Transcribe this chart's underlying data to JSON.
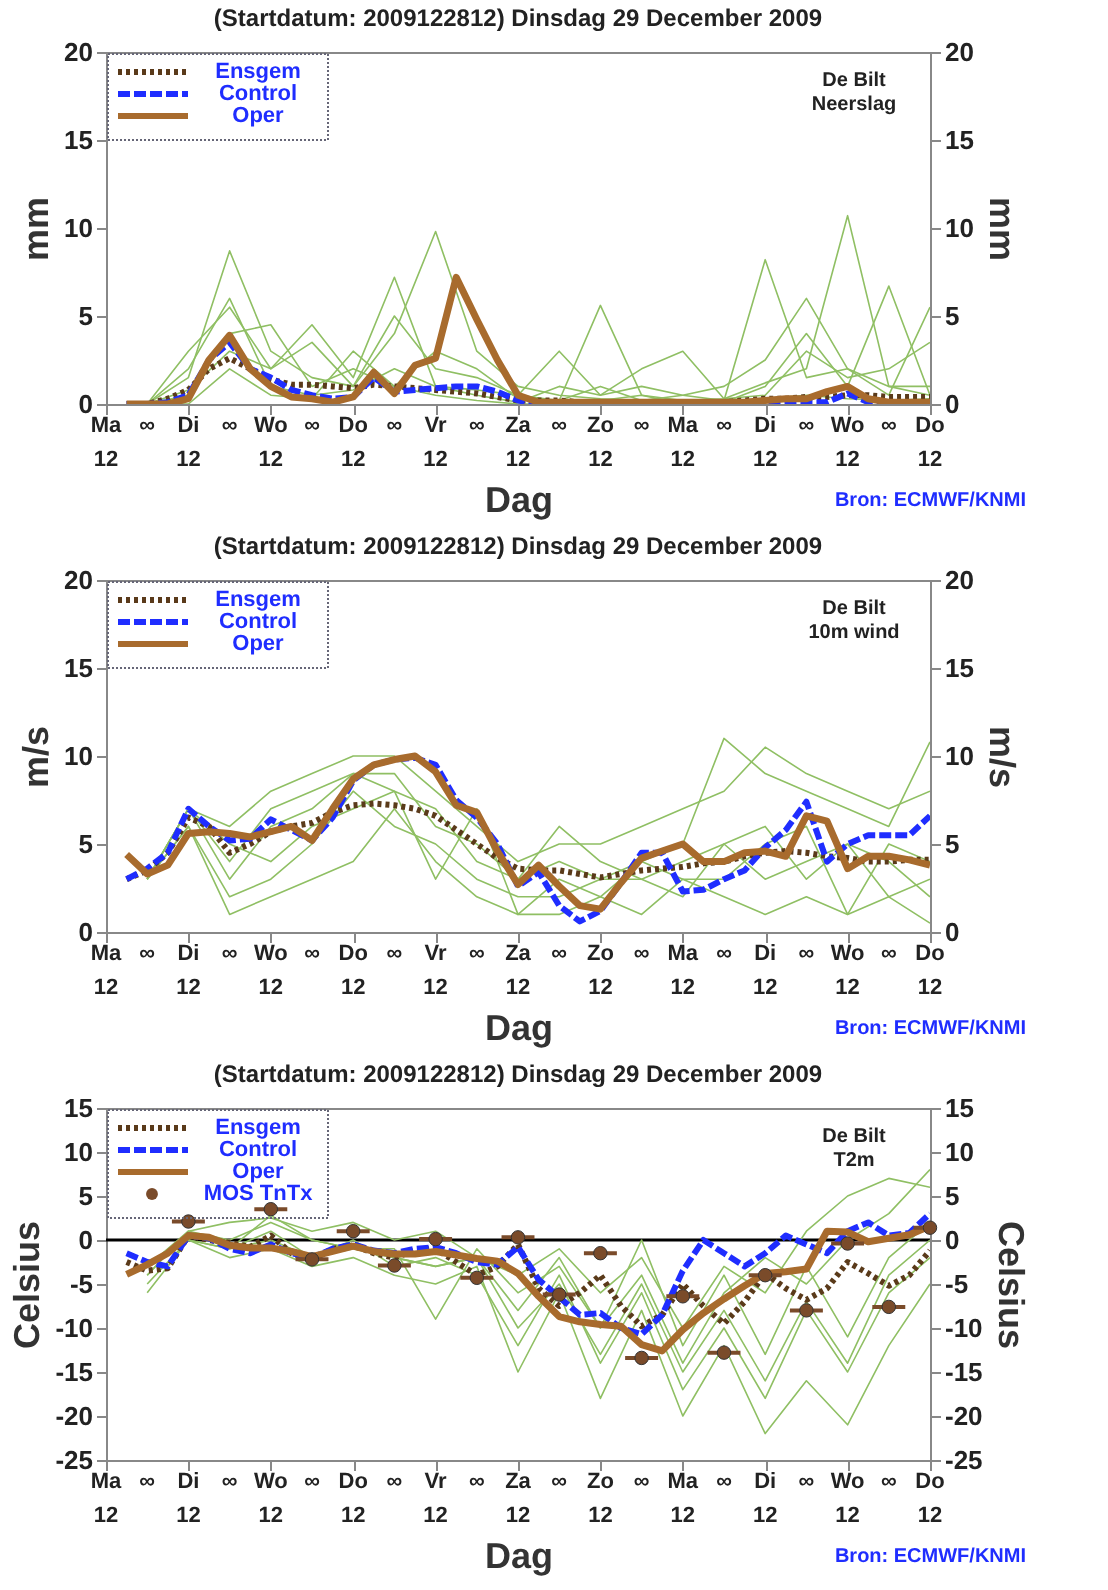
{
  "chart_data": [
    {
      "type": "line",
      "title": "(Startdatum: 2009122812)   Dinsdag   29 December  2009",
      "xlabel": "Dag",
      "ylabel": "mm",
      "y2label": "mm",
      "grid": false,
      "legend": "top left",
      "annotations": [
        "De Bilt",
        "Neerslag",
        "Bron: ECMWF/KNMI"
      ],
      "x": [
        "2009-12-28T18:00",
        "2009-12-29T00:00",
        "2009-12-29T06:00",
        "2009-12-29T12:00",
        "2009-12-29T18:00",
        "2009-12-30T00:00",
        "2009-12-30T06:00",
        "2009-12-30T12:00",
        "2009-12-30T18:00",
        "2009-12-31T00:00",
        "2009-12-31T06:00",
        "2009-12-31T12:00",
        "2009-12-31T18:00",
        "2010-01-01T00:00",
        "2010-01-01T06:00",
        "2010-01-01T12:00",
        "2010-01-01T18:00",
        "2010-01-02T00:00",
        "2010-01-02T06:00",
        "2010-01-02T12:00",
        "2010-01-02T18:00",
        "2010-01-03T00:00",
        "2010-01-03T06:00",
        "2010-01-03T12:00",
        "2010-01-03T18:00",
        "2010-01-04T00:00",
        "2010-01-04T06:00",
        "2010-01-04T12:00",
        "2010-01-04T18:00",
        "2010-01-05T00:00",
        "2010-01-05T06:00",
        "2010-01-05T12:00",
        "2010-01-05T18:00",
        "2010-01-06T00:00",
        "2010-01-06T06:00",
        "2010-01-06T12:00",
        "2010-01-06T18:00",
        "2010-01-07T00:00",
        "2010-01-07T06:00",
        "2010-01-07T12:00"
      ],
      "xlim": [
        "2009-12-28T12:00",
        "2010-01-07T12:00"
      ],
      "xticks": [
        {
          "value": "2009-12-28T12:00",
          "label": "Ma\n12"
        },
        {
          "value": "2009-12-29T00:00",
          "label": "∞"
        },
        {
          "value": "2009-12-29T12:00",
          "label": "Di\n12"
        },
        {
          "value": "2009-12-30T00:00",
          "label": "∞"
        },
        {
          "value": "2009-12-30T12:00",
          "label": "Wo\n12"
        },
        {
          "value": "2009-12-31T00:00",
          "label": "∞"
        },
        {
          "value": "2009-12-31T12:00",
          "label": "Do\n12"
        },
        {
          "value": "2010-01-01T00:00",
          "label": "∞"
        },
        {
          "value": "2010-01-01T12:00",
          "label": "Vr\n12"
        },
        {
          "value": "2010-01-02T00:00",
          "label": "∞"
        },
        {
          "value": "2010-01-02T12:00",
          "label": "Za\n12"
        },
        {
          "value": "2010-01-03T00:00",
          "label": "∞"
        },
        {
          "value": "2010-01-03T12:00",
          "label": "Zo\n12"
        },
        {
          "value": "2010-01-04T00:00",
          "label": "∞"
        },
        {
          "value": "2010-01-04T12:00",
          "label": "Ma\n12"
        },
        {
          "value": "2010-01-05T00:00",
          "label": "∞"
        },
        {
          "value": "2010-01-05T12:00",
          "label": "Di\n12"
        },
        {
          "value": "2010-01-06T00:00",
          "label": "∞"
        },
        {
          "value": "2010-01-06T12:00",
          "label": "Wo\n12"
        },
        {
          "value": "2010-01-07T00:00",
          "label": "∞"
        },
        {
          "value": "2010-01-07T12:00",
          "label": "Do\n12"
        }
      ],
      "ylim": [
        0,
        20
      ],
      "yticks": [
        0,
        5,
        10,
        15,
        20
      ],
      "y2lim": [
        0,
        20
      ],
      "y2ticks": [
        0,
        5,
        10,
        15,
        20
      ],
      "series": [
        {
          "color": "#8fbf63",
          "x": [
            "2009-12-29T00:00",
            "2009-12-29T12:00",
            "2009-12-30T00:00",
            "2009-12-30T12:00",
            "2009-12-31T00:00",
            "2009-12-31T12:00",
            "2010-01-01T00:00",
            "2010-01-01T12:00",
            "2010-01-02T00:00",
            "2010-01-02T12:00",
            "2010-01-03T00:00",
            "2010-01-03T12:00",
            "2010-01-04T00:00",
            "2010-01-04T12:00",
            "2010-01-05T00:00",
            "2010-01-05T12:00",
            "2010-01-06T00:00",
            "2010-01-06T12:00",
            "2010-01-07T00:00",
            "2010-01-07T12:00"
          ],
          "values": [
            0,
            1.5,
            8.7,
            3,
            1.5,
            1,
            4,
            9.8,
            3,
            1,
            0.5,
            0.3,
            0.2,
            0.2,
            0.3,
            1.2,
            2,
            10.7,
            1,
            0.5
          ]
        },
        {
          "color": "#8fbf63",
          "x": [
            "2009-12-29T00:00",
            "2009-12-29T12:00",
            "2009-12-30T00:00",
            "2009-12-30T12:00",
            "2009-12-31T00:00",
            "2009-12-31T12:00",
            "2010-01-01T00:00",
            "2010-01-01T12:00",
            "2010-01-02T00:00",
            "2010-01-02T12:00",
            "2010-01-03T00:00",
            "2010-01-03T12:00",
            "2010-01-04T00:00",
            "2010-01-04T12:00",
            "2010-01-05T00:00",
            "2010-01-05T12:00",
            "2010-01-06T00:00",
            "2010-01-06T12:00",
            "2010-01-07T00:00",
            "2010-01-07T12:00"
          ],
          "values": [
            0,
            3,
            5.5,
            2,
            3.5,
            1,
            5,
            2,
            1.5,
            0.5,
            3,
            0.5,
            1,
            0.5,
            0.2,
            8.2,
            1.5,
            2,
            0.5,
            5.5
          ]
        },
        {
          "color": "#8fbf63",
          "x": [
            "2009-12-29T00:00",
            "2009-12-29T12:00",
            "2009-12-30T00:00",
            "2009-12-30T12:00",
            "2009-12-31T00:00",
            "2009-12-31T12:00",
            "2010-01-01T00:00",
            "2010-01-01T12:00",
            "2010-01-02T00:00",
            "2010-01-02T12:00",
            "2010-01-03T00:00",
            "2010-01-03T12:00",
            "2010-01-04T00:00",
            "2010-01-04T12:00",
            "2010-01-05T00:00",
            "2010-01-05T12:00",
            "2010-01-06T00:00",
            "2010-01-06T12:00",
            "2010-01-07T00:00",
            "2010-01-07T12:00"
          ],
          "values": [
            0,
            0.5,
            4,
            4.5,
            1,
            2,
            1,
            3,
            2,
            0.3,
            0.2,
            5.6,
            0.5,
            0.2,
            0.1,
            1,
            4,
            1,
            6.7,
            0.5
          ]
        },
        {
          "color": "#8fbf63",
          "x": [
            "2009-12-29T00:00",
            "2009-12-29T12:00",
            "2009-12-30T00:00",
            "2009-12-30T12:00",
            "2009-12-31T00:00",
            "2009-12-31T12:00",
            "2010-01-01T00:00",
            "2010-01-01T12:00",
            "2010-01-02T00:00",
            "2010-01-02T12:00",
            "2010-01-03T00:00",
            "2010-01-03T12:00",
            "2010-01-04T00:00",
            "2010-01-04T12:00",
            "2010-01-05T00:00",
            "2010-01-05T12:00",
            "2010-01-06T00:00",
            "2010-01-06T12:00",
            "2010-01-07T00:00",
            "2010-01-07T12:00"
          ],
          "values": [
            0,
            2,
            6,
            1,
            0.5,
            0.8,
            2,
            1,
            0.5,
            0.1,
            1,
            0.5,
            2,
            3,
            0.3,
            0.5,
            3,
            1.5,
            2,
            3.5
          ]
        },
        {
          "color": "#8fbf63",
          "x": [
            "2009-12-29T00:00",
            "2009-12-29T12:00",
            "2009-12-30T00:00",
            "2009-12-30T12:00",
            "2009-12-31T00:00",
            "2009-12-31T12:00",
            "2010-01-01T00:00",
            "2010-01-01T12:00",
            "2010-01-02T00:00",
            "2010-01-02T12:00",
            "2010-01-03T00:00",
            "2010-01-03T12:00",
            "2010-01-04T00:00",
            "2010-01-04T12:00",
            "2010-01-05T00:00",
            "2010-01-05T12:00",
            "2010-01-06T00:00",
            "2010-01-06T12:00",
            "2010-01-07T00:00",
            "2010-01-07T12:00"
          ],
          "values": [
            0,
            0.8,
            3,
            2,
            4.5,
            1.5,
            7.2,
            1,
            0.8,
            0.5,
            0.2,
            1,
            0.2,
            0.5,
            1,
            2.5,
            6,
            2,
            1,
            1
          ]
        },
        {
          "color": "#8fbf63",
          "x": [
            "2009-12-29T00:00",
            "2009-12-29T12:00",
            "2009-12-30T00:00",
            "2009-12-30T12:00",
            "2009-12-31T00:00",
            "2009-12-31T12:00",
            "2010-01-01T00:00",
            "2010-01-01T12:00",
            "2010-01-02T00:00",
            "2010-01-02T12:00",
            "2010-01-03T00:00",
            "2010-01-03T12:00",
            "2010-01-04T00:00",
            "2010-01-04T12:00",
            "2010-01-05T00:00",
            "2010-01-05T12:00",
            "2010-01-06T00:00",
            "2010-01-06T12:00",
            "2010-01-07T00:00",
            "2010-01-07T12:00"
          ],
          "values": [
            0,
            0,
            2,
            0.5,
            0.3,
            3,
            1,
            0.5,
            0.2,
            0,
            0,
            0.2,
            0.5,
            0,
            0,
            0.3,
            0.5,
            0.3,
            0.2,
            0.3
          ]
        },
        {
          "name": "Ensgem",
          "color": "#5a3a1a",
          "line_style": "dotted",
          "values": [
            0,
            0,
            0.3,
            0.8,
            2.0,
            2.6,
            2.0,
            1.4,
            1.1,
            1.1,
            1.0,
            0.9,
            1.1,
            1.0,
            0.9,
            0.8,
            0.7,
            0.6,
            0.4,
            0.2,
            0.2,
            0.2,
            0.1,
            0.1,
            0.1,
            0.1,
            0.1,
            0.1,
            0.1,
            0.1,
            0.2,
            0.3,
            0.3,
            0.4,
            0.4,
            0.5,
            0.5,
            0.4,
            0.4,
            0.4
          ]
        },
        {
          "name": "Control",
          "color": "#1f2dff",
          "line_style": "dashed",
          "values": [
            0,
            0,
            0.1,
            0.5,
            2.5,
            3.5,
            2.0,
            1.5,
            0.8,
            0.5,
            0.3,
            0.4,
            1.5,
            0.7,
            0.8,
            0.9,
            1.0,
            1.0,
            0.7,
            0.2,
            0,
            0,
            0,
            0,
            0,
            0,
            0,
            0,
            0,
            0,
            0,
            0,
            0.1,
            0.1,
            0.1,
            0.6,
            0.1,
            0,
            0,
            0
          ]
        },
        {
          "name": "Oper",
          "color": "#a86b2d",
          "line_style": "solid",
          "values": [
            0,
            0,
            0,
            0.3,
            2.5,
            3.9,
            2.0,
            1.0,
            0.4,
            0.3,
            0.1,
            0.4,
            1.8,
            0.6,
            2.2,
            2.6,
            7.2,
            4.8,
            2.5,
            0.5,
            0.1,
            0.1,
            0.1,
            0.1,
            0.1,
            0.1,
            0.1,
            0.1,
            0.1,
            0.1,
            0.1,
            0.2,
            0.3,
            0.3,
            0.7,
            1.0,
            0.3,
            0.1,
            0.1,
            0.1
          ]
        }
      ]
    },
    {
      "type": "line",
      "title": "(Startdatum: 2009122812)   Dinsdag   29 December  2009",
      "xlabel": "Dag",
      "ylabel": "m/s",
      "y2label": "m/s",
      "grid": false,
      "legend": "top left",
      "annotations": [
        "De Bilt",
        "10m wind",
        "Bron: ECMWF/KNMI"
      ],
      "x": [
        "2009-12-28T18:00",
        "2009-12-29T00:00",
        "2009-12-29T06:00",
        "2009-12-29T12:00",
        "2009-12-29T18:00",
        "2009-12-30T00:00",
        "2009-12-30T06:00",
        "2009-12-30T12:00",
        "2009-12-30T18:00",
        "2009-12-31T00:00",
        "2009-12-31T06:00",
        "2009-12-31T12:00",
        "2009-12-31T18:00",
        "2010-01-01T00:00",
        "2010-01-01T06:00",
        "2010-01-01T12:00",
        "2010-01-01T18:00",
        "2010-01-02T00:00",
        "2010-01-02T06:00",
        "2010-01-02T12:00",
        "2010-01-02T18:00",
        "2010-01-03T00:00",
        "2010-01-03T06:00",
        "2010-01-03T12:00",
        "2010-01-03T18:00",
        "2010-01-04T00:00",
        "2010-01-04T06:00",
        "2010-01-04T12:00",
        "2010-01-04T18:00",
        "2010-01-05T00:00",
        "2010-01-05T06:00",
        "2010-01-05T12:00",
        "2010-01-05T18:00",
        "2010-01-06T00:00",
        "2010-01-06T06:00",
        "2010-01-06T12:00",
        "2010-01-06T18:00",
        "2010-01-07T00:00",
        "2010-01-07T06:00",
        "2010-01-07T12:00"
      ],
      "xlim": [
        "2009-12-28T12:00",
        "2010-01-07T12:00"
      ],
      "xticks": [
        {
          "value": "2009-12-28T12:00",
          "label": "Ma\n12"
        },
        {
          "value": "2009-12-29T00:00",
          "label": "∞"
        },
        {
          "value": "2009-12-29T12:00",
          "label": "Di\n12"
        },
        {
          "value": "2009-12-30T00:00",
          "label": "∞"
        },
        {
          "value": "2009-12-30T12:00",
          "label": "Wo\n12"
        },
        {
          "value": "2009-12-31T00:00",
          "label": "∞"
        },
        {
          "value": "2009-12-31T12:00",
          "label": "Do\n12"
        },
        {
          "value": "2010-01-01T00:00",
          "label": "∞"
        },
        {
          "value": "2010-01-01T12:00",
          "label": "Vr\n12"
        },
        {
          "value": "2010-01-02T00:00",
          "label": "∞"
        },
        {
          "value": "2010-01-02T12:00",
          "label": "Za\n12"
        },
        {
          "value": "2010-01-03T00:00",
          "label": "∞"
        },
        {
          "value": "2010-01-03T12:00",
          "label": "Zo\n12"
        },
        {
          "value": "2010-01-04T00:00",
          "label": "∞"
        },
        {
          "value": "2010-01-04T12:00",
          "label": "Ma\n12"
        },
        {
          "value": "2010-01-05T00:00",
          "label": "∞"
        },
        {
          "value": "2010-01-05T12:00",
          "label": "Di\n12"
        },
        {
          "value": "2010-01-06T00:00",
          "label": "∞"
        },
        {
          "value": "2010-01-06T12:00",
          "label": "Wo\n12"
        },
        {
          "value": "2010-01-07T00:00",
          "label": "∞"
        },
        {
          "value": "2010-01-07T12:00",
          "label": "Do\n12"
        }
      ],
      "ylim": [
        0,
        20
      ],
      "yticks": [
        0,
        5,
        10,
        15,
        20
      ],
      "y2lim": [
        0,
        20
      ],
      "y2ticks": [
        0,
        5,
        10,
        15,
        20
      ],
      "series": [
        {
          "color": "#8fbf63",
          "x": [
            "2009-12-29T00:00",
            "2009-12-29T12:00",
            "2009-12-30T00:00",
            "2009-12-30T12:00",
            "2009-12-31T00:00",
            "2009-12-31T12:00",
            "2010-01-01T00:00",
            "2010-01-01T12:00",
            "2010-01-02T00:00",
            "2010-01-02T12:00",
            "2010-01-03T00:00",
            "2010-01-03T12:00",
            "2010-01-04T00:00",
            "2010-01-04T12:00",
            "2010-01-05T00:00",
            "2010-01-05T12:00",
            "2010-01-06T00:00",
            "2010-01-06T12:00",
            "2010-01-07T00:00",
            "2010-01-07T12:00"
          ],
          "values": [
            3,
            7,
            4,
            7,
            8,
            9,
            9,
            6,
            5,
            3,
            4,
            3,
            4,
            5,
            11,
            9,
            8,
            7,
            6,
            10.8
          ]
        },
        {
          "color": "#8fbf63",
          "x": [
            "2009-12-29T00:00",
            "2009-12-29T12:00",
            "2009-12-30T00:00",
            "2009-12-30T12:00",
            "2009-12-31T00:00",
            "2009-12-31T12:00",
            "2010-01-01T00:00",
            "2010-01-01T12:00",
            "2010-01-02T00:00",
            "2010-01-02T12:00",
            "2010-01-03T00:00",
            "2010-01-03T12:00",
            "2010-01-04T00:00",
            "2010-01-04T12:00",
            "2010-01-05T00:00",
            "2010-01-05T12:00",
            "2010-01-06T00:00",
            "2010-01-06T12:00",
            "2010-01-07T00:00",
            "2010-01-07T12:00"
          ],
          "values": [
            3,
            6,
            2,
            3,
            5,
            8,
            6,
            5,
            3,
            2,
            2,
            3,
            3,
            4,
            5,
            3,
            4,
            5,
            4,
            2
          ]
        },
        {
          "color": "#8fbf63",
          "x": [
            "2009-12-29T00:00",
            "2009-12-29T12:00",
            "2009-12-30T00:00",
            "2009-12-30T12:00",
            "2009-12-31T00:00",
            "2009-12-31T12:00",
            "2010-01-01T00:00",
            "2010-01-01T12:00",
            "2010-01-02T00:00",
            "2010-01-02T12:00",
            "2010-01-03T00:00",
            "2010-01-03T12:00",
            "2010-01-04T00:00",
            "2010-01-04T12:00",
            "2010-01-05T00:00",
            "2010-01-05T12:00",
            "2010-01-06T00:00",
            "2010-01-06T12:00",
            "2010-01-07T00:00",
            "2010-01-07T12:00"
          ],
          "values": [
            3,
            7,
            6,
            8,
            9,
            10,
            10,
            8,
            6,
            4,
            5,
            5,
            6,
            7,
            8,
            10.5,
            9,
            8,
            7,
            8
          ]
        },
        {
          "color": "#8fbf63",
          "x": [
            "2009-12-29T00:00",
            "2009-12-29T12:00",
            "2009-12-30T00:00",
            "2009-12-30T12:00",
            "2009-12-31T00:00",
            "2009-12-31T12:00",
            "2010-01-01T00:00",
            "2010-01-01T12:00",
            "2010-01-02T00:00",
            "2010-01-02T12:00",
            "2010-01-03T00:00",
            "2010-01-03T12:00",
            "2010-01-04T00:00",
            "2010-01-04T12:00",
            "2010-01-05T00:00",
            "2010-01-05T12:00",
            "2010-01-06T00:00",
            "2010-01-06T12:00",
            "2010-01-07T00:00",
            "2010-01-07T12:00"
          ],
          "values": [
            3,
            6,
            1,
            2,
            3,
            4,
            7,
            4,
            2,
            1,
            1,
            2,
            1,
            3,
            2,
            1,
            2,
            1,
            2,
            0.5
          ]
        },
        {
          "color": "#8fbf63",
          "x": [
            "2009-12-29T00:00",
            "2009-12-29T12:00",
            "2009-12-30T00:00",
            "2009-12-30T12:00",
            "2009-12-31T00:00",
            "2009-12-31T12:00",
            "2010-01-01T00:00",
            "2010-01-01T12:00",
            "2010-01-02T00:00",
            "2010-01-02T12:00",
            "2010-01-03T00:00",
            "2010-01-03T12:00",
            "2010-01-04T00:00",
            "2010-01-04T12:00",
            "2010-01-05T00:00",
            "2010-01-05T12:00",
            "2010-01-06T00:00",
            "2010-01-06T12:00",
            "2010-01-07T00:00",
            "2010-01-07T12:00"
          ],
          "values": [
            3,
            7,
            5,
            4,
            6,
            7,
            8,
            7,
            4,
            3,
            6,
            4,
            3,
            2,
            5,
            6,
            3,
            5,
            2,
            3
          ]
        },
        {
          "color": "#8fbf63",
          "x": [
            "2009-12-29T00:00",
            "2009-12-29T12:00",
            "2009-12-30T00:00",
            "2009-12-30T12:00",
            "2009-12-31T00:00",
            "2009-12-31T12:00",
            "2010-01-01T00:00",
            "2010-01-01T12:00",
            "2010-01-02T00:00",
            "2010-01-02T12:00",
            "2010-01-03T00:00",
            "2010-01-03T12:00",
            "2010-01-04T00:00",
            "2010-01-04T12:00",
            "2010-01-05T00:00",
            "2010-01-05T12:00",
            "2010-01-06T00:00",
            "2010-01-06T12:00",
            "2010-01-07T00:00",
            "2010-01-07T12:00"
          ],
          "values": [
            3,
            7,
            3,
            6,
            7,
            9,
            8,
            3,
            7,
            1,
            3,
            2,
            4,
            3,
            3,
            5,
            6,
            1,
            5,
            4
          ]
        },
        {
          "name": "Ensgem",
          "color": "#5a3a1a",
          "line_style": "dotted",
          "values": [
            3.0,
            3.5,
            4.5,
            6.5,
            6.0,
            4.5,
            5.0,
            5.7,
            6.0,
            6.2,
            6.8,
            7.2,
            7.3,
            7.2,
            7.0,
            6.6,
            5.8,
            5.0,
            4.2,
            3.6,
            3.5,
            3.5,
            3.3,
            3.1,
            3.3,
            3.5,
            3.6,
            3.7,
            3.9,
            4.0,
            4.3,
            4.5,
            4.6,
            4.5,
            4.3,
            4.2,
            4.0,
            4.0,
            4.1,
            4.1
          ]
        },
        {
          "name": "Control",
          "color": "#1f2dff",
          "line_style": "dashed",
          "values": [
            3.0,
            3.6,
            4.5,
            7.0,
            6.0,
            5.2,
            5.3,
            6.4,
            5.8,
            5.2,
            6.5,
            8.6,
            9.5,
            9.8,
            9.9,
            9.5,
            7.5,
            6.5,
            5.0,
            2.6,
            3.4,
            1.5,
            0.6,
            1.2,
            2.8,
            4.5,
            4.5,
            2.3,
            2.4,
            3.0,
            3.5,
            4.8,
            5.8,
            7.4,
            4.0,
            5.0,
            5.5,
            5.5,
            5.5,
            6.6
          ]
        },
        {
          "name": "Oper",
          "color": "#a86b2d",
          "line_style": "solid",
          "values": [
            4.4,
            3.3,
            3.8,
            5.6,
            5.7,
            5.6,
            5.4,
            5.7,
            6.0,
            5.2,
            7.0,
            8.7,
            9.5,
            9.8,
            10.0,
            9.1,
            7.2,
            6.8,
            4.6,
            2.7,
            3.8,
            2.6,
            1.5,
            1.3,
            2.8,
            4.2,
            4.6,
            5.0,
            4.0,
            4.0,
            4.5,
            4.6,
            4.3,
            6.6,
            6.3,
            3.6,
            4.3,
            4.3,
            4.1,
            3.8
          ]
        }
      ]
    },
    {
      "type": "line",
      "title": "(Startdatum: 2009122812)   Dinsdag   29 December  2009",
      "xlabel": "Dag",
      "ylabel": "Celsius",
      "y2label": "Celsius",
      "grid": false,
      "legend": "top left",
      "annotations": [
        "De Bilt",
        "T2m",
        "Bron: ECMWF/KNMI"
      ],
      "ref_lines": [
        {
          "axis": "y",
          "value": 0,
          "color": "#000000"
        }
      ],
      "x": [
        "2009-12-28T18:00",
        "2009-12-29T00:00",
        "2009-12-29T06:00",
        "2009-12-29T12:00",
        "2009-12-29T18:00",
        "2009-12-30T00:00",
        "2009-12-30T06:00",
        "2009-12-30T12:00",
        "2009-12-30T18:00",
        "2009-12-31T00:00",
        "2009-12-31T06:00",
        "2009-12-31T12:00",
        "2009-12-31T18:00",
        "2010-01-01T00:00",
        "2010-01-01T06:00",
        "2010-01-01T12:00",
        "2010-01-01T18:00",
        "2010-01-02T00:00",
        "2010-01-02T06:00",
        "2010-01-02T12:00",
        "2010-01-02T18:00",
        "2010-01-03T00:00",
        "2010-01-03T06:00",
        "2010-01-03T12:00",
        "2010-01-03T18:00",
        "2010-01-04T00:00",
        "2010-01-04T06:00",
        "2010-01-04T12:00",
        "2010-01-04T18:00",
        "2010-01-05T00:00",
        "2010-01-05T06:00",
        "2010-01-05T12:00",
        "2010-01-05T18:00",
        "2010-01-06T00:00",
        "2010-01-06T06:00",
        "2010-01-06T12:00",
        "2010-01-06T18:00",
        "2010-01-07T00:00",
        "2010-01-07T06:00",
        "2010-01-07T12:00"
      ],
      "xlim": [
        "2009-12-28T12:00",
        "2010-01-07T12:00"
      ],
      "xticks": [
        {
          "value": "2009-12-28T12:00",
          "label": "Ma\n12"
        },
        {
          "value": "2009-12-29T00:00",
          "label": "∞"
        },
        {
          "value": "2009-12-29T12:00",
          "label": "Di\n12"
        },
        {
          "value": "2009-12-30T00:00",
          "label": "∞"
        },
        {
          "value": "2009-12-30T12:00",
          "label": "Wo\n12"
        },
        {
          "value": "2009-12-31T00:00",
          "label": "∞"
        },
        {
          "value": "2009-12-31T12:00",
          "label": "Do\n12"
        },
        {
          "value": "2010-01-01T00:00",
          "label": "∞"
        },
        {
          "value": "2010-01-01T12:00",
          "label": "Vr\n12"
        },
        {
          "value": "2010-01-02T00:00",
          "label": "∞"
        },
        {
          "value": "2010-01-02T12:00",
          "label": "Za\n12"
        },
        {
          "value": "2010-01-03T00:00",
          "label": "∞"
        },
        {
          "value": "2010-01-03T12:00",
          "label": "Zo\n12"
        },
        {
          "value": "2010-01-04T00:00",
          "label": "∞"
        },
        {
          "value": "2010-01-04T12:00",
          "label": "Ma\n12"
        },
        {
          "value": "2010-01-05T00:00",
          "label": "∞"
        },
        {
          "value": "2010-01-05T12:00",
          "label": "Di\n12"
        },
        {
          "value": "2010-01-06T00:00",
          "label": "∞"
        },
        {
          "value": "2010-01-06T12:00",
          "label": "Wo\n12"
        },
        {
          "value": "2010-01-07T00:00",
          "label": "∞"
        },
        {
          "value": "2010-01-07T12:00",
          "label": "Do\n12"
        }
      ],
      "ylim": [
        -25,
        15
      ],
      "yticks": [
        -25,
        -20,
        -15,
        -10,
        -5,
        0,
        5,
        10,
        15
      ],
      "y2lim": [
        -25,
        15
      ],
      "y2ticks": [
        -25,
        -20,
        -15,
        -10,
        -5,
        0,
        5,
        10,
        15
      ],
      "series": [
        {
          "color": "#8fbf63",
          "x": [
            "2009-12-29T00:00",
            "2009-12-29T12:00",
            "2009-12-30T00:00",
            "2009-12-30T12:00",
            "2009-12-31T00:00",
            "2009-12-31T12:00",
            "2010-01-01T00:00",
            "2010-01-01T12:00",
            "2010-01-02T00:00",
            "2010-01-02T12:00",
            "2010-01-03T00:00",
            "2010-01-03T12:00",
            "2010-01-04T00:00",
            "2010-01-04T12:00",
            "2010-01-05T00:00",
            "2010-01-05T12:00",
            "2010-01-06T00:00",
            "2010-01-06T12:00",
            "2010-01-07T00:00",
            "2010-01-07T12:00"
          ],
          "values": [
            -4,
            1,
            0,
            2,
            0,
            -1,
            -2,
            -3,
            -2,
            -8,
            -2,
            -10,
            -4,
            -14,
            -6,
            -2,
            -5,
            0,
            3,
            8
          ]
        },
        {
          "color": "#8fbf63",
          "x": [
            "2009-12-29T00:00",
            "2009-12-29T12:00",
            "2009-12-30T00:00",
            "2009-12-30T12:00",
            "2009-12-31T00:00",
            "2009-12-31T12:00",
            "2010-01-01T00:00",
            "2010-01-01T12:00",
            "2010-01-02T00:00",
            "2010-01-02T12:00",
            "2010-01-03T00:00",
            "2010-01-03T12:00",
            "2010-01-04T00:00",
            "2010-01-04T12:00",
            "2010-01-05T00:00",
            "2010-01-05T12:00",
            "2010-01-06T00:00",
            "2010-01-06T12:00",
            "2010-01-07T00:00",
            "2010-01-07T12:00"
          ],
          "values": [
            -6,
            0,
            -2,
            -1,
            -3,
            -2,
            -4,
            -5,
            -3,
            -15,
            -6,
            -18,
            -8,
            -20,
            -12,
            -22,
            -16,
            -21,
            -12,
            -5
          ]
        },
        {
          "color": "#8fbf63",
          "x": [
            "2009-12-29T00:00",
            "2009-12-29T12:00",
            "2009-12-30T00:00",
            "2009-12-30T12:00",
            "2009-12-31T00:00",
            "2009-12-31T12:00",
            "2010-01-01T00:00",
            "2010-01-01T12:00",
            "2010-01-02T00:00",
            "2010-01-02T12:00",
            "2010-01-03T00:00",
            "2010-01-03T12:00",
            "2010-01-04T00:00",
            "2010-01-04T12:00",
            "2010-01-05T00:00",
            "2010-01-05T12:00",
            "2010-01-06T00:00",
            "2010-01-06T12:00",
            "2010-01-07T00:00",
            "2010-01-07T12:00"
          ],
          "values": [
            -3,
            1,
            2,
            2.5,
            1,
            2,
            0,
            1,
            -2,
            -4,
            -1,
            -6,
            -2,
            -10,
            -3,
            -6,
            1,
            5,
            7,
            6
          ]
        },
        {
          "color": "#8fbf63",
          "x": [
            "2009-12-29T00:00",
            "2009-12-29T12:00",
            "2009-12-30T00:00",
            "2009-12-30T12:00",
            "2009-12-31T00:00",
            "2009-12-31T12:00",
            "2010-01-01T00:00",
            "2010-01-01T12:00",
            "2010-01-02T00:00",
            "2010-01-02T12:00",
            "2010-01-03T00:00",
            "2010-01-03T12:00",
            "2010-01-04T00:00",
            "2010-01-04T12:00",
            "2010-01-05T00:00",
            "2010-01-05T12:00",
            "2010-01-06T00:00",
            "2010-01-06T12:00",
            "2010-01-07T00:00",
            "2010-01-07T12:00"
          ],
          "values": [
            -5,
            0,
            -1,
            0,
            -2,
            0,
            -3,
            -2,
            -4,
            -12,
            -4,
            -14,
            -6,
            -17,
            -10,
            -18,
            -8,
            -15,
            -6,
            -2
          ]
        },
        {
          "color": "#8fbf63",
          "x": [
            "2009-12-29T00:00",
            "2009-12-29T12:00",
            "2009-12-30T00:00",
            "2009-12-30T12:00",
            "2009-12-31T00:00",
            "2009-12-31T12:00",
            "2010-01-01T00:00",
            "2010-01-01T12:00",
            "2010-01-02T00:00",
            "2010-01-02T12:00",
            "2010-01-03T00:00",
            "2010-01-03T12:00",
            "2010-01-04T00:00",
            "2010-01-04T12:00",
            "2010-01-05T00:00",
            "2010-01-05T12:00",
            "2010-01-06T00:00",
            "2010-01-06T12:00",
            "2010-01-07T00:00",
            "2010-01-07T12:00"
          ],
          "values": [
            -3,
            0,
            -1,
            2.8,
            0,
            -1,
            -1,
            -9,
            -1,
            -6,
            -3,
            -10,
            0,
            -12,
            -4,
            -13,
            -3,
            -11,
            -2,
            2
          ]
        },
        {
          "color": "#8fbf63",
          "x": [
            "2009-12-29T00:00",
            "2009-12-29T12:00",
            "2009-12-30T00:00",
            "2009-12-30T12:00",
            "2009-12-31T00:00",
            "2009-12-31T12:00",
            "2010-01-01T00:00",
            "2010-01-01T12:00",
            "2010-01-02T00:00",
            "2010-01-02T12:00",
            "2010-01-03T00:00",
            "2010-01-03T12:00",
            "2010-01-04T00:00",
            "2010-01-04T12:00",
            "2010-01-05T00:00",
            "2010-01-05T12:00",
            "2010-01-06T00:00",
            "2010-01-06T12:00",
            "2010-01-07T00:00",
            "2010-01-07T12:00"
          ],
          "values": [
            -4,
            1,
            -1,
            1,
            -2,
            -1,
            -2,
            -3,
            -2,
            -10,
            -5,
            -13,
            -5,
            -15,
            -8,
            -16,
            -7,
            -14,
            -4,
            0
          ]
        },
        {
          "name": "Ensgem",
          "color": "#5a3a1a",
          "line_style": "dotted",
          "values": [
            -2.5,
            -3.5,
            -3.2,
            0.5,
            0.0,
            -0.3,
            -0.8,
            0.5,
            -1.5,
            -2.2,
            -1.0,
            -0.6,
            -1.5,
            -2.0,
            -1.2,
            -1.0,
            -2.5,
            -4.0,
            -3.0,
            -0.5,
            -5.5,
            -7.5,
            -6.0,
            -4.0,
            -7.5,
            -9.8,
            -8.5,
            -5.0,
            -7.5,
            -9.5,
            -7.0,
            -3.8,
            -5.5,
            -6.8,
            -5.5,
            -2.5,
            -3.8,
            -5.2,
            -4.0,
            -1.2
          ]
        },
        {
          "name": "Control",
          "color": "#1f2dff",
          "line_style": "dashed",
          "values": [
            -1.5,
            -2.5,
            -3.0,
            0.5,
            0.2,
            -1.0,
            -1.5,
            -0.5,
            -1.5,
            -2.0,
            -1.0,
            -0.5,
            -1.2,
            -1.5,
            -1.0,
            -0.8,
            -1.5,
            -2.5,
            -2.8,
            -0.8,
            -4.5,
            -6.5,
            -8.5,
            -8.3,
            -10.0,
            -10.7,
            -8.5,
            -3.5,
            0.0,
            -1.5,
            -3.0,
            -1.5,
            0.5,
            -0.5,
            -1.5,
            1.0,
            2.0,
            0.5,
            0.8,
            3.0
          ]
        },
        {
          "name": "Oper",
          "color": "#a86b2d",
          "line_style": "solid",
          "values": [
            -3.9,
            -2.8,
            -1.5,
            0.5,
            0.3,
            -0.6,
            -0.9,
            -0.9,
            -1.3,
            -1.9,
            -1.3,
            -0.7,
            -1.3,
            -1.6,
            -1.6,
            -1.3,
            -1.7,
            -2.1,
            -2.4,
            -3.8,
            -6.4,
            -8.7,
            -9.3,
            -9.6,
            -9.8,
            -11.9,
            -12.6,
            -10.2,
            -8.3,
            -6.7,
            -5.2,
            -3.8,
            -3.6,
            -3.3,
            1.0,
            0.9,
            -0.2,
            0.2,
            0.6,
            1.6
          ]
        },
        {
          "name": "MOS TnTx",
          "type": "scatter",
          "marker": "circle",
          "color": "#7a4b2a",
          "x": [
            "2009-12-29T12:00",
            "2009-12-30T12:00",
            "2009-12-31T00:00",
            "2009-12-31T12:00",
            "2010-01-01T00:00",
            "2010-01-01T12:00",
            "2010-01-02T00:00",
            "2010-01-02T12:00",
            "2010-01-03T00:00",
            "2010-01-03T12:00",
            "2010-01-04T00:00",
            "2010-01-04T12:00",
            "2010-01-05T00:00",
            "2010-01-05T12:00",
            "2010-01-06T00:00",
            "2010-01-06T12:00",
            "2010-01-07T00:00",
            "2010-01-07T12:00"
          ],
          "values": [
            2.1,
            3.5,
            -2.2,
            1.0,
            -2.9,
            0.1,
            -4.3,
            0.3,
            -6.2,
            -1.5,
            -13.4,
            -6.4,
            -12.8,
            -4.0,
            -8.0,
            -0.4,
            -7.6,
            1.4
          ],
          "xerrors": [
            0.2,
            0.2,
            0.2,
            0.2,
            0.2,
            0.2,
            0.2,
            0.2,
            0.2,
            0.2,
            0.2,
            0.2,
            0.2,
            0.2,
            0.2,
            0.2,
            0.2,
            0.2
          ]
        }
      ]
    }
  ]
}
